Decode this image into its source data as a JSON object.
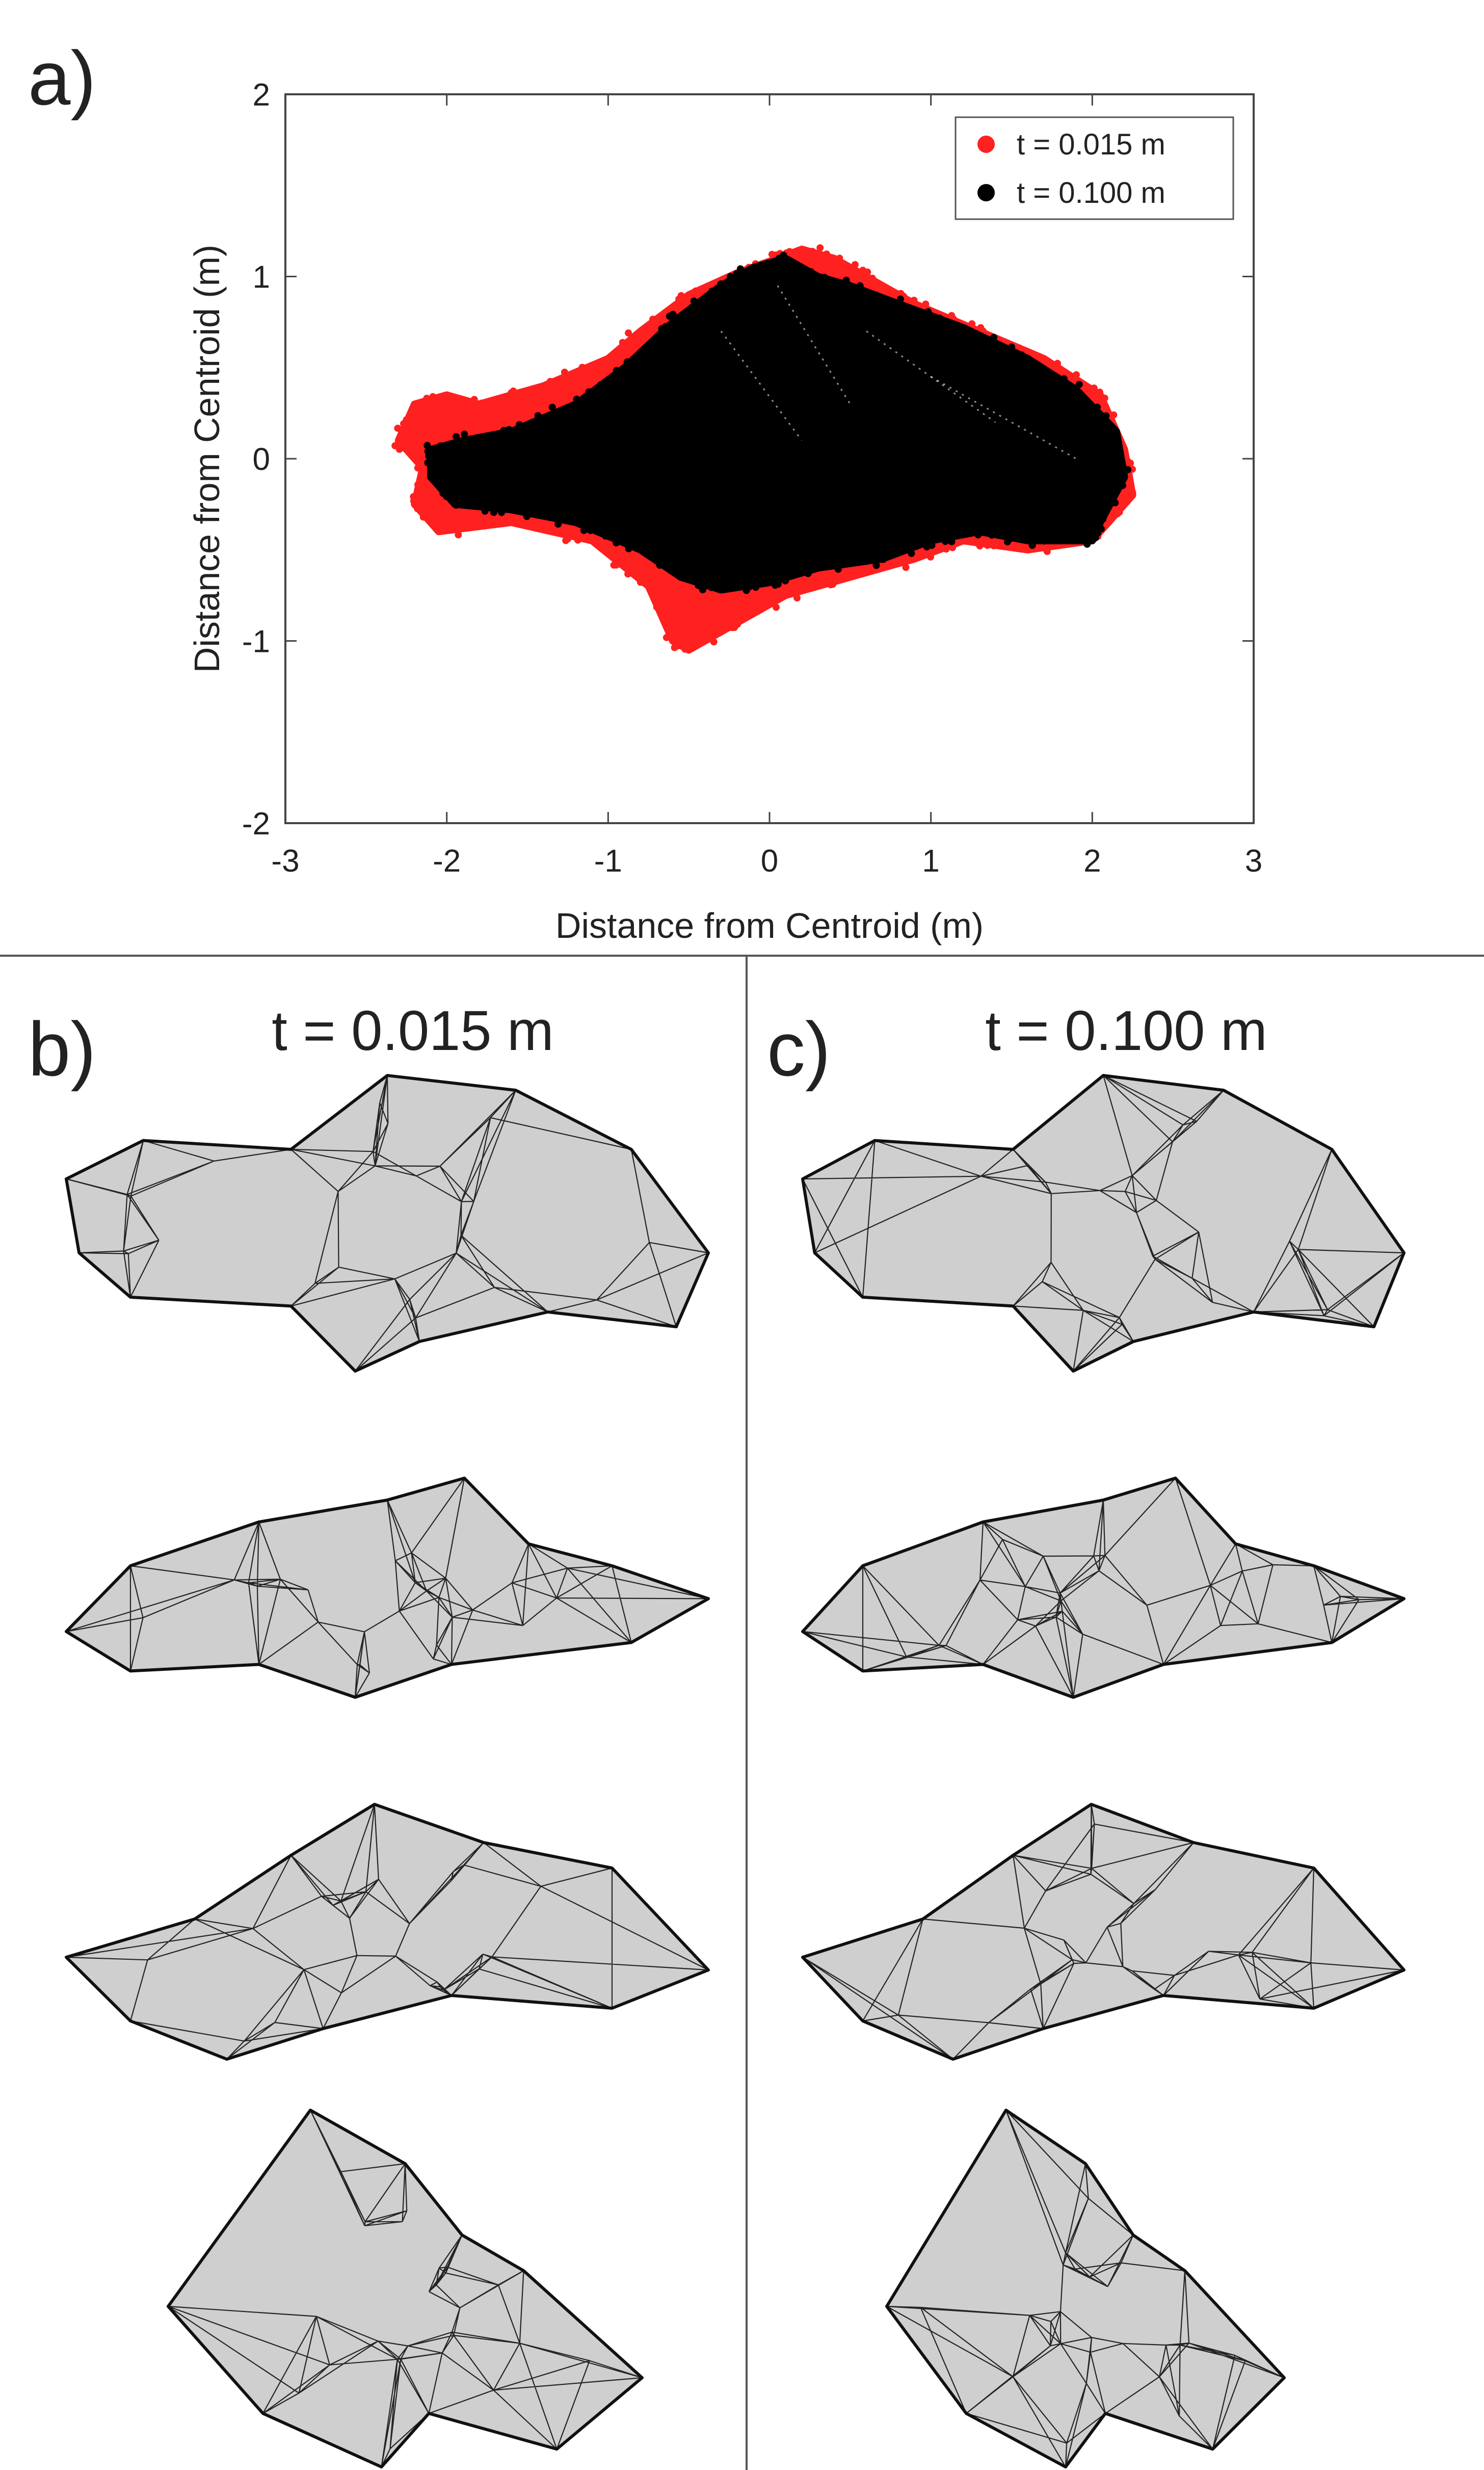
{
  "panels": {
    "a": {
      "letter": "a)"
    },
    "b": {
      "letter": "b)",
      "title": "t = 0.015 m"
    },
    "c": {
      "letter": "c)",
      "title": "t = 0.100 m"
    }
  },
  "colors": {
    "series_fine": "#ff2020",
    "series_coarse": "#000000",
    "mesh_fill": "#cfcfcf",
    "mesh_edge": "#111111",
    "divider": "#555555",
    "axes": "#444444"
  },
  "chart_data": {
    "type": "scatter",
    "title": "",
    "xlabel": "Distance from Centroid (m)",
    "ylabel": "Distance from Centroid (m)",
    "xlim": [
      -3,
      3
    ],
    "ylim": [
      -2,
      2
    ],
    "xticks": [
      -3,
      -2,
      -1,
      0,
      1,
      2,
      3
    ],
    "yticks": [
      -2,
      -1,
      0,
      1,
      2
    ],
    "xtick_labels": [
      "-3",
      "-2",
      "-1",
      "0",
      "1",
      "2",
      "3"
    ],
    "ytick_labels": [
      "-2",
      "-1",
      "0",
      "1",
      "2"
    ],
    "grid": false,
    "legend_position": "top-right",
    "series": [
      {
        "name": "t = 0.015 m",
        "color": "#ff2020",
        "outline": [
          [
            -2.3,
            0.1
          ],
          [
            -2.2,
            0.3
          ],
          [
            -2.0,
            0.35
          ],
          [
            -1.8,
            0.3
          ],
          [
            -1.4,
            0.4
          ],
          [
            -1.0,
            0.55
          ],
          [
            -0.8,
            0.7
          ],
          [
            -0.5,
            0.9
          ],
          [
            -0.2,
            1.02
          ],
          [
            0.05,
            1.1
          ],
          [
            0.2,
            1.15
          ],
          [
            0.4,
            1.1
          ],
          [
            0.6,
            1.0
          ],
          [
            0.9,
            0.85
          ],
          [
            1.3,
            0.7
          ],
          [
            1.7,
            0.55
          ],
          [
            2.05,
            0.35
          ],
          [
            2.2,
            0.05
          ],
          [
            2.25,
            -0.2
          ],
          [
            2.0,
            -0.45
          ],
          [
            1.6,
            -0.5
          ],
          [
            1.2,
            -0.45
          ],
          [
            0.9,
            -0.55
          ],
          [
            0.5,
            -0.65
          ],
          [
            0.1,
            -0.75
          ],
          [
            -0.2,
            -0.9
          ],
          [
            -0.5,
            -1.05
          ],
          [
            -0.6,
            -1.0
          ],
          [
            -0.75,
            -0.7
          ],
          [
            -1.1,
            -0.45
          ],
          [
            -1.6,
            -0.35
          ],
          [
            -2.05,
            -0.4
          ],
          [
            -2.2,
            -0.25
          ],
          [
            -2.15,
            -0.05
          ]
        ]
      },
      {
        "name": "t = 0.100 m",
        "color": "#000000",
        "outline": [
          [
            -2.1,
            0.05
          ],
          [
            -1.9,
            0.1
          ],
          [
            -1.6,
            0.15
          ],
          [
            -1.2,
            0.3
          ],
          [
            -0.9,
            0.5
          ],
          [
            -0.6,
            0.75
          ],
          [
            -0.3,
            0.95
          ],
          [
            -0.1,
            1.05
          ],
          [
            0.1,
            1.1
          ],
          [
            0.3,
            1.0
          ],
          [
            0.5,
            0.95
          ],
          [
            0.8,
            0.85
          ],
          [
            1.2,
            0.72
          ],
          [
            1.6,
            0.55
          ],
          [
            1.9,
            0.38
          ],
          [
            2.15,
            0.15
          ],
          [
            2.2,
            -0.1
          ],
          [
            2.05,
            -0.35
          ],
          [
            2.0,
            -0.45
          ],
          [
            1.6,
            -0.45
          ],
          [
            1.3,
            -0.4
          ],
          [
            1.0,
            -0.45
          ],
          [
            0.7,
            -0.55
          ],
          [
            0.3,
            -0.6
          ],
          [
            0.0,
            -0.68
          ],
          [
            -0.3,
            -0.72
          ],
          [
            -0.55,
            -0.65
          ],
          [
            -0.8,
            -0.5
          ],
          [
            -1.2,
            -0.35
          ],
          [
            -1.6,
            -0.28
          ],
          [
            -1.95,
            -0.25
          ],
          [
            -2.1,
            -0.1
          ]
        ]
      }
    ]
  }
}
